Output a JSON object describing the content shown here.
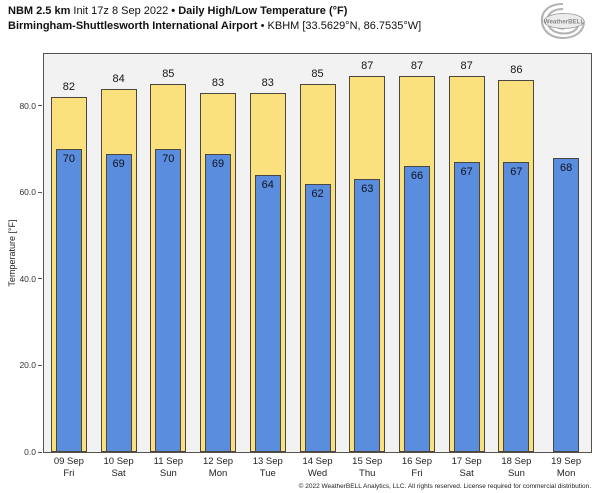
{
  "header": {
    "model": "NBM 2.5 km",
    "init": "Init 17z 8 Sep 2022",
    "bullet": "•",
    "product": "Daily High/Low Temperature (°F)",
    "station": "Birmingham-Shuttlesworth International Airport",
    "station_meta": "KBHM [33.5629°N, 86.7535°W]"
  },
  "logo": {
    "brand": "WeatherBELL"
  },
  "footer": {
    "copyright": "© 2022 WeatherBELL Analytics, LLC. All rights reserved. License required for commercial distribution."
  },
  "chart_data": {
    "type": "bar",
    "title": "Daily High/Low Temperature (°F)",
    "subtitle": "NBM 2.5 km • Init 17z 8 Sep 2022 • Birmingham-Shuttlesworth International Airport • KBHM [33.5629°N, 86.7535°W]",
    "xlabel": "",
    "ylabel": "Temperature [°F]",
    "ylim": [
      0,
      92
    ],
    "yticks": [
      0,
      20,
      40,
      60,
      80
    ],
    "ytick_labels": [
      "0.0",
      "20.0",
      "40.0",
      "60.0",
      "80.0"
    ],
    "grid": false,
    "legend": false,
    "plot_background": "#f2f2f2",
    "bar_edge_color": "#4a4640",
    "categories": [
      {
        "date": "09 Sep",
        "day": "Fri"
      },
      {
        "date": "10 Sep",
        "day": "Sat"
      },
      {
        "date": "11 Sep",
        "day": "Sun"
      },
      {
        "date": "12 Sep",
        "day": "Mon"
      },
      {
        "date": "13 Sep",
        "day": "Tue"
      },
      {
        "date": "14 Sep",
        "day": "Wed"
      },
      {
        "date": "15 Sep",
        "day": "Thu"
      },
      {
        "date": "16 Sep",
        "day": "Fri"
      },
      {
        "date": "17 Sep",
        "day": "Sat"
      },
      {
        "date": "18 Sep",
        "day": "Sun"
      },
      {
        "date": "19 Sep",
        "day": "Mon"
      }
    ],
    "series": [
      {
        "name": "Daily High",
        "color": "#fbe17e",
        "values": [
          82,
          84,
          85,
          83,
          83,
          85,
          87,
          87,
          87,
          86,
          null
        ]
      },
      {
        "name": "Daily Low",
        "color": "#5b8dde",
        "values": [
          70,
          69,
          70,
          69,
          64,
          62,
          63,
          66,
          67,
          67,
          68
        ]
      }
    ]
  }
}
